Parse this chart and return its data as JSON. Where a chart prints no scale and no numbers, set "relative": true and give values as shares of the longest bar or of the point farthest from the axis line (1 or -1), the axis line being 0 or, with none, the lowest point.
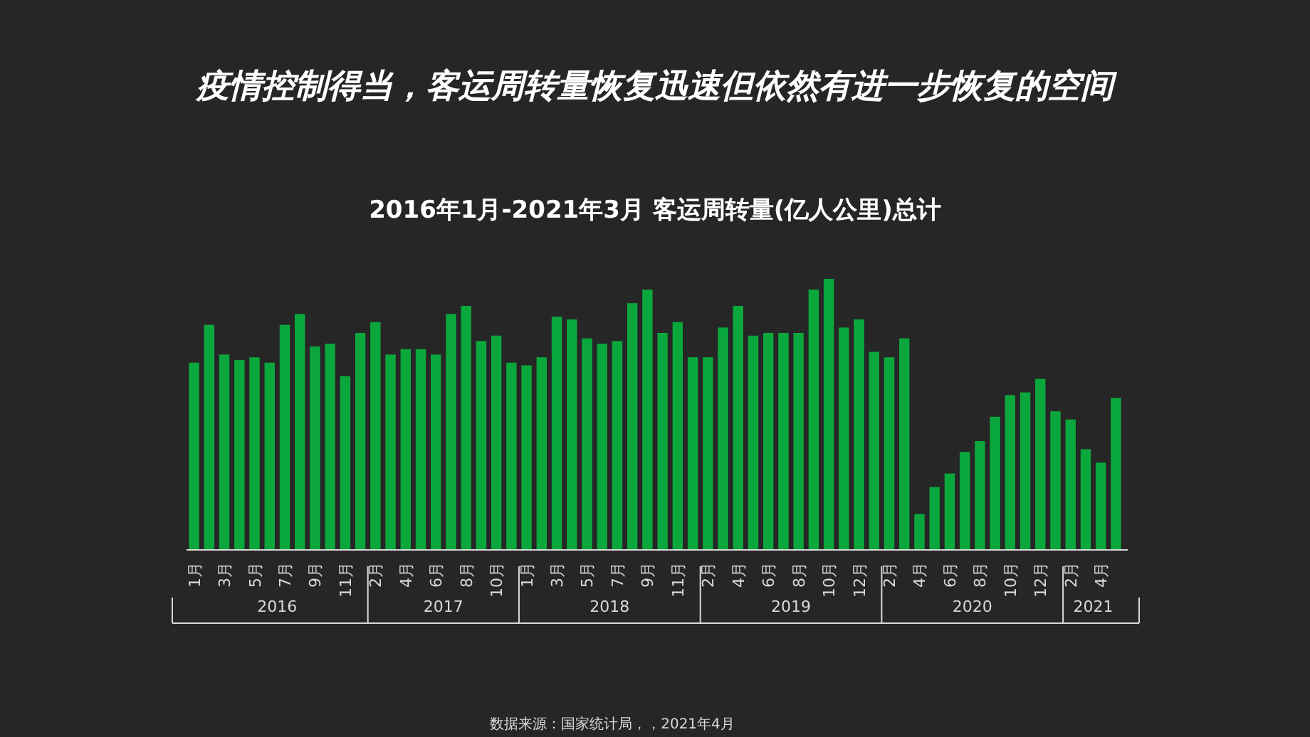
{
  "chart_data": {
    "type": "bar",
    "title": "疫情控制得当，客运周转量恢复迅速但依然有进一步恢复的空间",
    "subtitle": "2016年1月-2021年3月 客运周转量(亿人公里)总计",
    "categories": [
      "1月",
      null,
      "3月",
      null,
      "5月",
      null,
      "7月",
      null,
      "9月",
      null,
      "11月",
      null,
      "2月",
      null,
      "4月",
      null,
      "6月",
      null,
      "8月",
      null,
      "10月",
      null,
      "1月",
      null,
      "3月",
      null,
      "5月",
      null,
      "7月",
      null,
      "9月",
      null,
      "11月",
      null,
      "2月",
      null,
      "4月",
      null,
      "6月",
      null,
      "8月",
      null,
      "10月",
      null,
      "12月",
      null,
      "2月",
      null,
      "4月",
      null,
      "6月",
      null,
      "8月",
      null,
      "10月",
      null,
      "12月",
      null,
      "2月",
      null,
      "4月",
      null
    ],
    "values": [
      0.69,
      0.83,
      0.72,
      0.7,
      0.71,
      0.69,
      0.83,
      0.87,
      0.75,
      0.76,
      0.64,
      0.8,
      0.84,
      0.72,
      0.74,
      0.74,
      0.72,
      0.87,
      0.9,
      0.77,
      0.79,
      0.69,
      0.68,
      0.71,
      0.86,
      0.85,
      0.78,
      0.76,
      0.77,
      0.91,
      0.96,
      0.8,
      0.84,
      0.71,
      0.71,
      0.82,
      0.9,
      0.79,
      0.8,
      0.8,
      0.8,
      0.96,
      1,
      0.82,
      0.85,
      0.73,
      0.71,
      0.78,
      0.13,
      0.23,
      0.28,
      0.36,
      0.4,
      0.49,
      0.57,
      0.58,
      0.63,
      0.51,
      0.48,
      0.37,
      0.32,
      0.56
    ],
    "color": "#0aa83c",
    "relative": true,
    "annotations": [
      "2016",
      "2017",
      "2018",
      "2019",
      "2020",
      "2021",
      "数据来源：国家统计局，，2021年4月"
    ]
  }
}
